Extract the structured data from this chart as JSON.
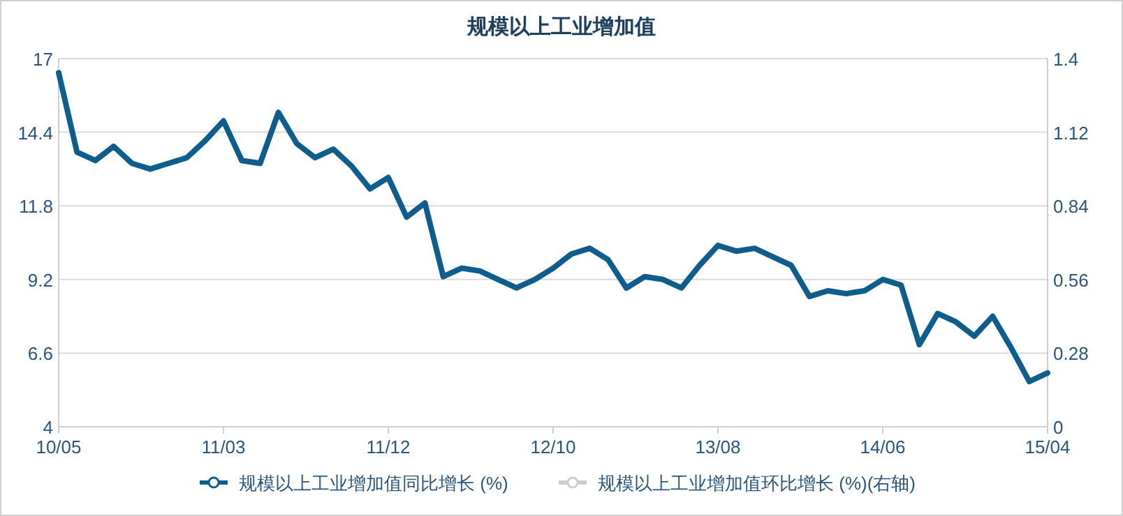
{
  "chart_data": {
    "type": "line",
    "title": "规模以上工业增加值",
    "categories": [
      "10/05",
      null,
      null,
      null,
      null,
      null,
      null,
      null,
      null,
      "11/03",
      null,
      null,
      null,
      null,
      null,
      null,
      null,
      null,
      "11/12",
      null,
      null,
      null,
      null,
      null,
      null,
      null,
      null,
      "12/10",
      null,
      null,
      null,
      null,
      null,
      null,
      null,
      null,
      "13/08",
      null,
      null,
      null,
      null,
      null,
      null,
      null,
      null,
      "14/06",
      null,
      null,
      null,
      null,
      null,
      null,
      null,
      null,
      "15/04"
    ],
    "series": [
      {
        "name": "规模以上工业增加值同比增长 (%)",
        "color": "#0e5d8c",
        "values": [
          16.5,
          13.7,
          13.4,
          13.9,
          13.3,
          13.1,
          13.3,
          13.5,
          14.1,
          14.8,
          13.4,
          13.3,
          15.1,
          14.0,
          13.5,
          13.8,
          13.2,
          12.4,
          12.8,
          11.4,
          11.9,
          9.3,
          9.6,
          9.5,
          9.2,
          8.9,
          9.2,
          9.6,
          10.1,
          10.3,
          9.9,
          8.9,
          9.3,
          9.2,
          8.9,
          9.7,
          10.4,
          10.2,
          10.3,
          10.0,
          9.7,
          8.6,
          8.8,
          8.7,
          8.8,
          9.2,
          9.0,
          6.9,
          8.0,
          7.7,
          7.2,
          7.9,
          6.8,
          5.6,
          5.9
        ]
      },
      {
        "name": "规模以上工业增加值环比增长 (%)(右轴)",
        "color": "#cccccc",
        "values": [
          null,
          null,
          null,
          null,
          null,
          null,
          null,
          null,
          null,
          null,
          null,
          null,
          null,
          null,
          null,
          null,
          null,
          null,
          null,
          null,
          null,
          null,
          null,
          null,
          null,
          null,
          null,
          null,
          null,
          null,
          null,
          null,
          null,
          null,
          null,
          null,
          null,
          null,
          null,
          null,
          null,
          null,
          null,
          null,
          null,
          null,
          null,
          null,
          null,
          null,
          null,
          null,
          null,
          null,
          null
        ]
      }
    ],
    "ylim": [
      4,
      17
    ],
    "yticks": [
      4,
      6.6,
      9.2,
      11.8,
      14.4,
      17
    ],
    "y2lim": [
      0,
      1.4
    ],
    "y2ticks": [
      0,
      0.28,
      0.56,
      0.84,
      1.12,
      1.4
    ],
    "grid": "y",
    "legend": "bottom",
    "marker": "none",
    "line_style": "solid"
  }
}
